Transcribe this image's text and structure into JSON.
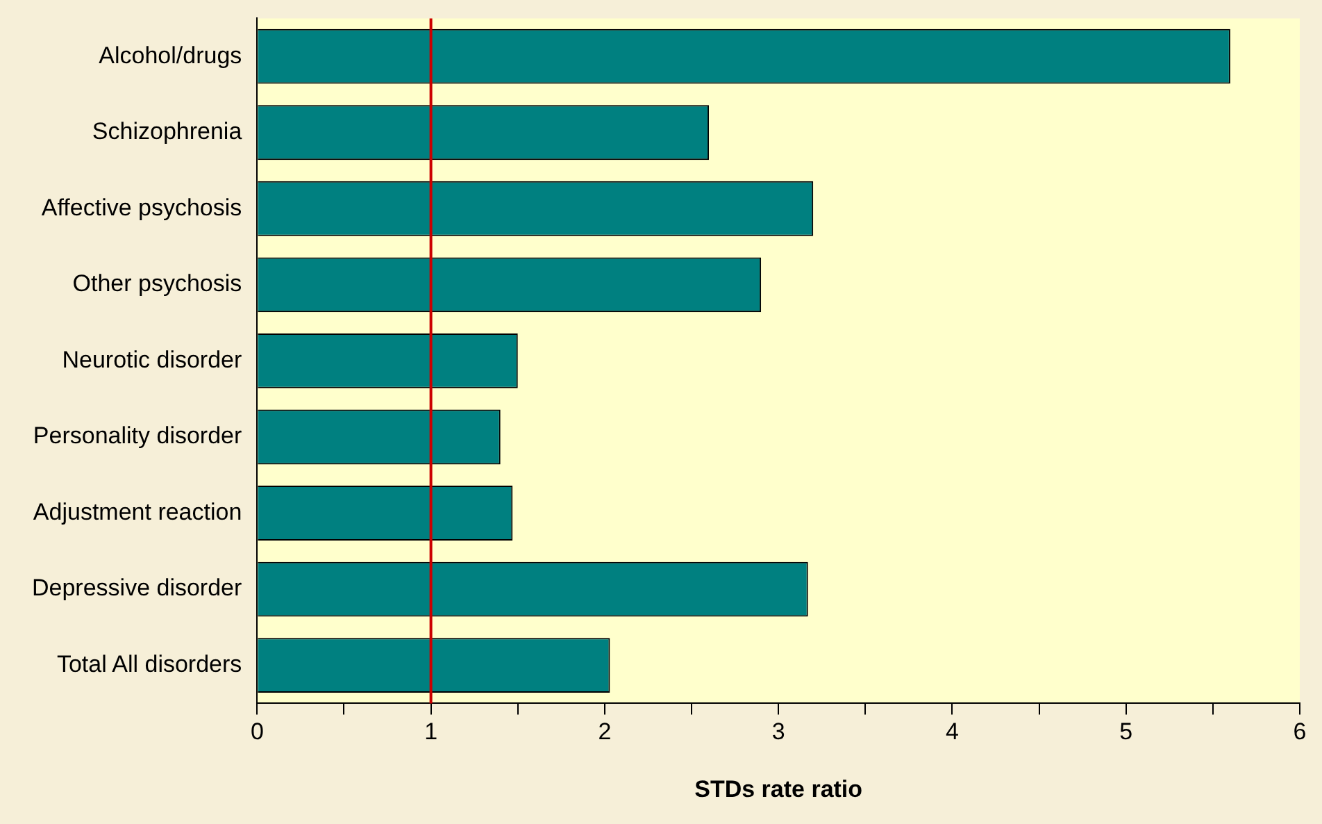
{
  "chart_data": {
    "type": "bar",
    "orientation": "horizontal",
    "xlabel": "STDs rate ratio",
    "categories": [
      "Alcohol/drugs",
      "Schizophrenia",
      "Affective psychosis",
      "Other psychosis",
      "Neurotic disorder",
      "Personality disorder",
      "Adjustment reaction",
      "Depressive disorder",
      "Total All disorders"
    ],
    "values": [
      5.6,
      2.6,
      3.2,
      2.9,
      1.5,
      1.4,
      1.47,
      3.17,
      2.03
    ],
    "color": "#008080",
    "xlim": [
      0,
      6
    ],
    "xticks": [
      0,
      {
        "value": 0.5,
        "label": null
      },
      1,
      {
        "value": 1.5,
        "label": null
      },
      2,
      {
        "value": 2.5,
        "label": null
      },
      3,
      {
        "value": 3.5,
        "label": null
      },
      4,
      {
        "value": 4.5,
        "label": null
      },
      5,
      {
        "value": 5.5,
        "label": null
      },
      6
    ],
    "ref_lines": [
      {
        "axis": "x",
        "value": 1,
        "color": "#cc0000"
      }
    ],
    "grid": false,
    "legend": false
  }
}
